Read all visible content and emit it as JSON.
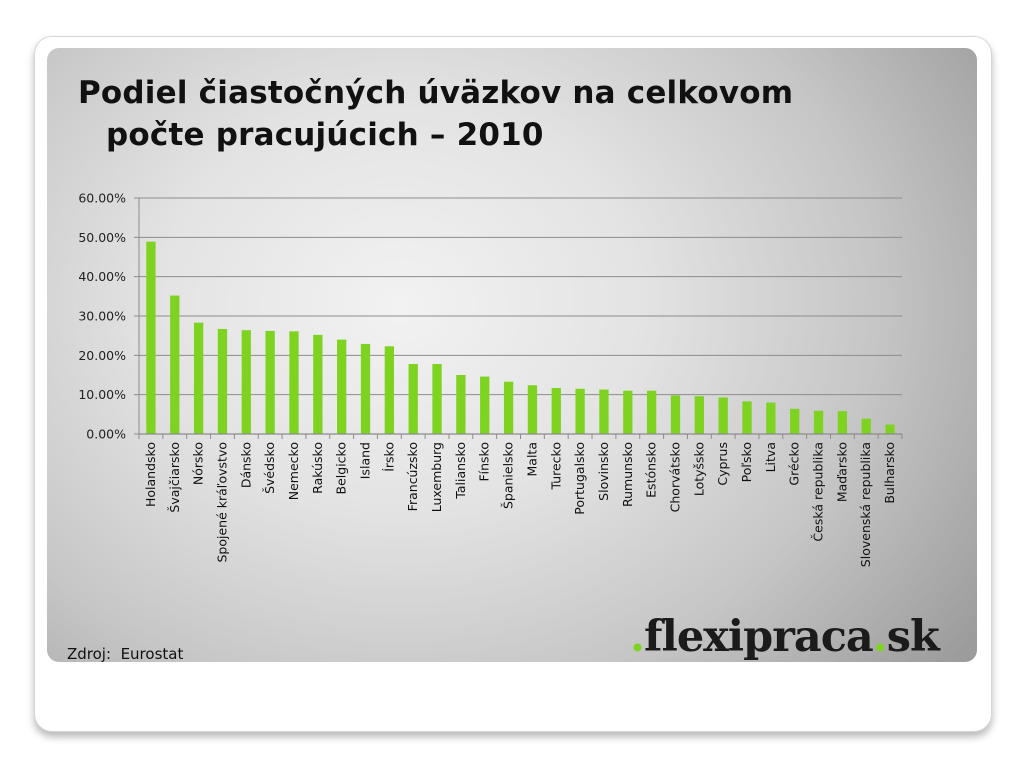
{
  "slide": {
    "title_line1": "Podiel čiastočných úväzkov na celkovom",
    "title_line2": "počte pracujúcich – 2010",
    "source": "Zdroj:  Eurostat",
    "logo": {
      "dot1": ".",
      "name": "flexipraca",
      "dot2": ".",
      "tld": "sk"
    },
    "colors": {
      "bar": "#7ed321",
      "logo_dot": "#7ed321",
      "grid": "#8c8c8c"
    }
  },
  "chart_data": {
    "type": "bar",
    "title": "",
    "xlabel": "",
    "ylabel": "",
    "ylim": [
      0,
      0.6
    ],
    "yticks": [
      "0.00%",
      "10.00%",
      "20.00%",
      "30.00%",
      "40.00%",
      "50.00%",
      "60.00%"
    ],
    "grid": true,
    "legend": "none",
    "categories": [
      "Holandsko",
      "Švajčiarsko",
      "Nórsko",
      "Spojené kráľovstvo",
      "Dánsko",
      "Švédsko",
      "Nemecko",
      "Rakúsko",
      "Belgicko",
      "Island",
      "Írsko",
      "Francúzsko",
      "Luxemburg",
      "Taliansko",
      "Fínsko",
      "Španielsko",
      "Malta",
      "Turecko",
      "Portugalsko",
      "Slovinsko",
      "Rumunsko",
      "Estónsko",
      "Chorvátsko",
      "Lotyšsko",
      "Cyprus",
      "Poľsko",
      "Litva",
      "Grécko",
      "Česká republika",
      "Maďarsko",
      "Slovenská republika",
      "Bulharsko"
    ],
    "values": [
      0.489,
      0.352,
      0.283,
      0.267,
      0.264,
      0.262,
      0.261,
      0.252,
      0.24,
      0.229,
      0.223,
      0.178,
      0.178,
      0.15,
      0.146,
      0.133,
      0.124,
      0.117,
      0.115,
      0.113,
      0.11,
      0.11,
      0.098,
      0.096,
      0.093,
      0.083,
      0.08,
      0.064,
      0.059,
      0.058,
      0.039,
      0.024
    ]
  }
}
